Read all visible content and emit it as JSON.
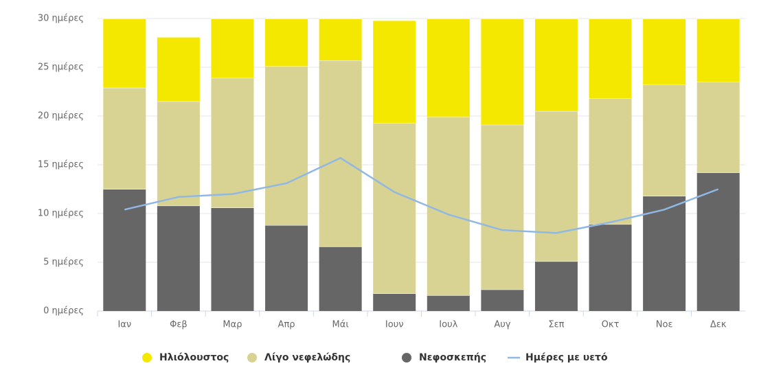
{
  "chart_data": {
    "type": "stacked-bar-line",
    "categories": [
      "Ιαν",
      "Φεβ",
      "Μαρ",
      "Απρ",
      "Μάι",
      "Ιουν",
      "Ιουλ",
      "Αυγ",
      "Σεπ",
      "Οκτ",
      "Νοε",
      "Δεκ"
    ],
    "series": [
      {
        "name": "Ηλιόλουστος",
        "color": "#f5e800",
        "values": [
          7.1,
          6.6,
          6.1,
          4.9,
          4.3,
          10.5,
          10.1,
          10.9,
          9.5,
          8.2,
          6.8,
          6.5
        ]
      },
      {
        "name": "Λίγο νεφελώδης",
        "color": "#d8d392",
        "values": [
          10.4,
          10.7,
          13.3,
          16.3,
          19.1,
          17.5,
          18.3,
          16.9,
          15.4,
          12.9,
          11.4,
          9.3
        ]
      },
      {
        "name": "Νεφοσκεπής",
        "color": "#666666",
        "values": [
          12.5,
          10.8,
          10.6,
          8.8,
          6.6,
          1.8,
          1.6,
          2.2,
          5.1,
          8.9,
          11.8,
          14.2
        ]
      },
      {
        "name": "Ημέρες με υετό",
        "color": "#90b8e4",
        "type": "line",
        "values": [
          10.4,
          11.7,
          12.0,
          13.1,
          15.7,
          12.2,
          9.9,
          8.3,
          8.0,
          9.1,
          10.4,
          12.5
        ]
      }
    ],
    "ylim": [
      0,
      30
    ],
    "yticks": [
      {
        "value": 0,
        "label": "0 ημέρες"
      },
      {
        "value": 5,
        "label": "5 ημέρες"
      },
      {
        "value": 10,
        "label": "10 ημέρες"
      },
      {
        "value": 15,
        "label": "15 ημέρες"
      },
      {
        "value": 20,
        "label": "20 ημέρες"
      },
      {
        "value": 25,
        "label": "25 ημέρες"
      },
      {
        "value": 30,
        "label": "30 ημέρες"
      }
    ],
    "grid": true
  }
}
